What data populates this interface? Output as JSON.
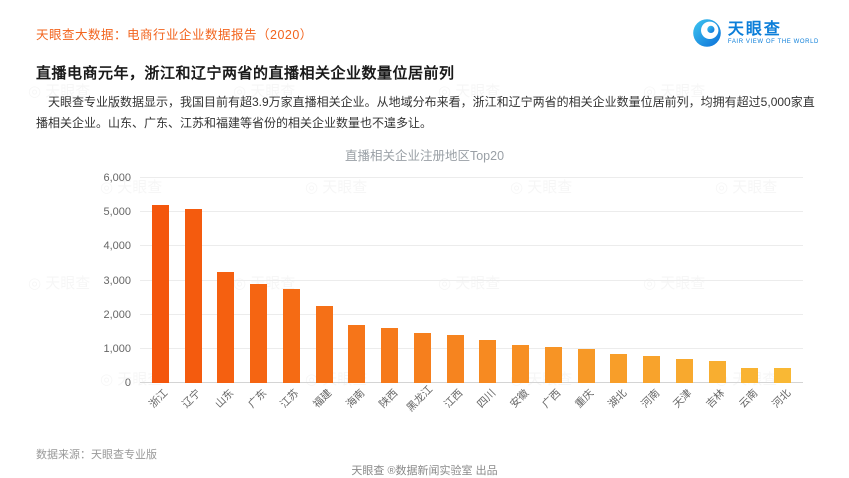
{
  "header": {
    "report_title": "天眼查大数据：电商行业企业数据报告（2020）",
    "logo": {
      "name": "天眼查",
      "tagline": "FAIR VIEW OF THE WORLD"
    }
  },
  "article": {
    "title": "直播电商元年，浙江和辽宁两省的直播相关企业数量位居前列",
    "body": "天眼查专业版数据显示，我国目前有超3.9万家直播相关企业。从地域分布来看，浙江和辽宁两省的相关企业数量位居前列，均拥有超过5,000家直播相关企业。山东、广东、江苏和福建等省份的相关企业数量也不遑多让。"
  },
  "chart_data": {
    "type": "bar",
    "title": "直播相关企业注册地区Top20",
    "categories": [
      "浙江",
      "辽宁",
      "山东",
      "广东",
      "江苏",
      "福建",
      "海南",
      "陕西",
      "黑龙江",
      "江西",
      "四川",
      "安徽",
      "广西",
      "重庆",
      "湖北",
      "河南",
      "天津",
      "吉林",
      "云南",
      "河北"
    ],
    "values": [
      5200,
      5100,
      3250,
      2900,
      2750,
      2250,
      1700,
      1600,
      1450,
      1400,
      1250,
      1100,
      1050,
      1000,
      850,
      800,
      700,
      650,
      450,
      430
    ],
    "xlabel": "",
    "ylabel": "",
    "ylim": [
      0,
      6000
    ],
    "yticks": [
      0,
      1000,
      2000,
      3000,
      4000,
      5000,
      6000
    ],
    "grid": true,
    "legend": false,
    "bar_color_start": "#f4560c",
    "bar_color_end": "#f9b834"
  },
  "footer": {
    "source": "数据来源：天眼查专业版",
    "credit": "天眼查 ®数据新闻实验室 出品"
  },
  "watermark": {
    "icon": "◎",
    "text": "天眼查"
  },
  "colors": {
    "accent_orange": "#f2641e",
    "brand_blue": "#0b7ed9",
    "grid_gray": "#ececec",
    "text_gray": "#666666"
  }
}
